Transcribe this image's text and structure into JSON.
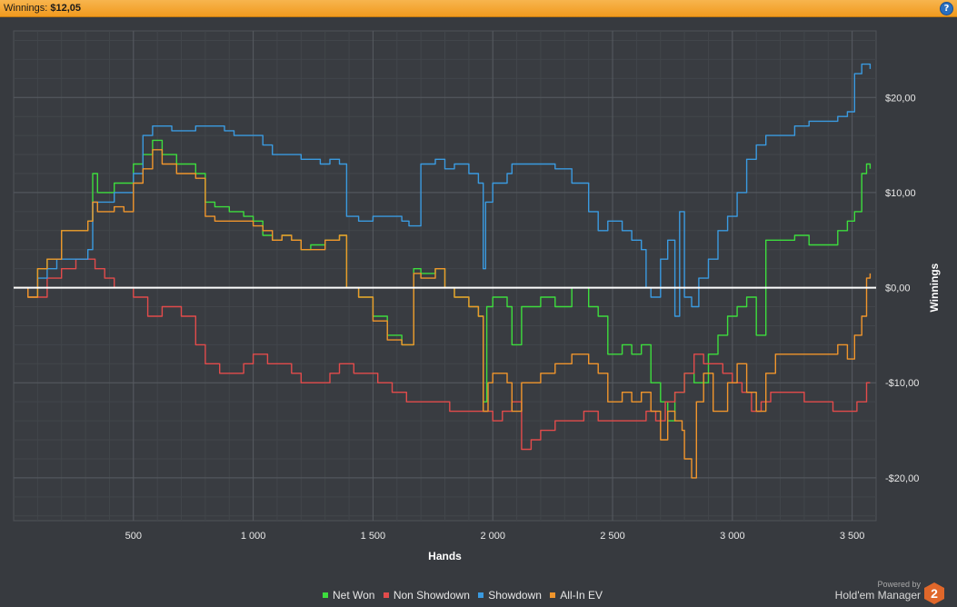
{
  "header": {
    "label": "Winnings:",
    "value": "$12,05",
    "help_icon": "?"
  },
  "chart_data": {
    "type": "line",
    "title": "",
    "xlabel": "Hands",
    "ylabel": "Winnings",
    "xlim": [
      0,
      3600
    ],
    "ylim": [
      -24.5,
      27
    ],
    "x_ticks": [
      500,
      1000,
      1500,
      2000,
      2500,
      3000,
      3500
    ],
    "x_tick_labels": [
      "500",
      "1 000",
      "1 500",
      "2 000",
      "2 500",
      "3 000",
      "3 500"
    ],
    "y_ticks": [
      20,
      10,
      0,
      -10,
      -20
    ],
    "y_tick_labels": [
      "$20,00",
      "$10,00",
      "$0,00",
      "-$10,00",
      "-$20,00"
    ],
    "grid": true,
    "zero_line": true,
    "legend_position": "bottom",
    "series": [
      {
        "name": "Net Won",
        "color": "#3ddc3d",
        "x": [
          0,
          60,
          100,
          140,
          200,
          230,
          280,
          310,
          330,
          350,
          380,
          420,
          460,
          500,
          540,
          580,
          620,
          680,
          760,
          800,
          840,
          900,
          960,
          1000,
          1040,
          1080,
          1120,
          1160,
          1200,
          1240,
          1300,
          1360,
          1390,
          1440,
          1500,
          1560,
          1620,
          1670,
          1700,
          1760,
          1800,
          1840,
          1900,
          1940,
          1960,
          1975,
          2000,
          2060,
          2080,
          2120,
          2200,
          2260,
          2330,
          2400,
          2440,
          2480,
          2540,
          2580,
          2620,
          2660,
          2700,
          2730,
          2760,
          2800,
          2840,
          2900,
          2940,
          2980,
          3020,
          3060,
          3100,
          3140,
          3180,
          3260,
          3320,
          3380,
          3440,
          3480,
          3510,
          3540,
          3560,
          3575
        ],
        "y": [
          0,
          -1,
          2,
          3,
          6,
          6,
          6,
          7,
          12,
          10,
          10,
          11,
          11,
          13,
          14,
          15.5,
          14,
          13,
          12,
          9,
          8.5,
          8,
          7.5,
          7,
          5.5,
          5,
          5.5,
          5,
          4,
          4.5,
          5,
          5.5,
          0,
          -1,
          -3,
          -5,
          -6,
          2,
          1.5,
          2,
          0,
          -1,
          -2,
          -3,
          -12,
          -2,
          -1,
          -2,
          -6,
          -2,
          -1,
          -2,
          0,
          -2,
          -3,
          -7,
          -6,
          -7,
          -6,
          -10,
          -12,
          -14,
          -11,
          -9,
          -10,
          -7,
          -5,
          -3,
          -2,
          -1,
          -5,
          5,
          5,
          5.5,
          4.5,
          4.5,
          6,
          7,
          8,
          12,
          13,
          12.5
        ]
      },
      {
        "name": "Non Showdown",
        "color": "#e24b4b",
        "x": [
          0,
          60,
          100,
          140,
          200,
          260,
          310,
          340,
          380,
          420,
          500,
          560,
          620,
          700,
          760,
          800,
          860,
          920,
          960,
          1000,
          1060,
          1120,
          1160,
          1200,
          1260,
          1320,
          1360,
          1420,
          1460,
          1520,
          1580,
          1640,
          1700,
          1760,
          1820,
          1880,
          1940,
          2000,
          2040,
          2080,
          2120,
          2160,
          2200,
          2260,
          2320,
          2380,
          2440,
          2480,
          2540,
          2600,
          2640,
          2680,
          2720,
          2760,
          2800,
          2840,
          2880,
          2920,
          2960,
          3000,
          3040,
          3080,
          3120,
          3160,
          3220,
          3260,
          3300,
          3360,
          3420,
          3460,
          3520,
          3560,
          3575
        ],
        "y": [
          0,
          -1,
          -1,
          1,
          2,
          3,
          3,
          2,
          1,
          0,
          -1,
          -3,
          -2,
          -3,
          -6,
          -8,
          -9,
          -9,
          -8,
          -7,
          -8,
          -8,
          -9,
          -10,
          -10,
          -9,
          -8,
          -9,
          -9,
          -10,
          -11,
          -12,
          -12,
          -12,
          -13,
          -13,
          -13,
          -14,
          -13,
          -12,
          -17,
          -16,
          -15,
          -14,
          -14,
          -13,
          -14,
          -14,
          -14,
          -14,
          -13,
          -14,
          -12,
          -11,
          -9,
          -7,
          -8,
          -8,
          -9,
          -10,
          -11,
          -13,
          -12,
          -11,
          -11,
          -11,
          -12,
          -12,
          -13,
          -13,
          -12,
          -10,
          -10
        ]
      },
      {
        "name": "Showdown",
        "color": "#3a9ae0",
        "x": [
          0,
          60,
          100,
          140,
          180,
          230,
          280,
          310,
          330,
          350,
          380,
          420,
          460,
          500,
          540,
          580,
          620,
          660,
          700,
          760,
          800,
          840,
          880,
          920,
          960,
          1000,
          1040,
          1080,
          1120,
          1160,
          1200,
          1240,
          1280,
          1320,
          1360,
          1390,
          1440,
          1500,
          1560,
          1620,
          1650,
          1700,
          1760,
          1800,
          1840,
          1900,
          1940,
          1960,
          1970,
          2000,
          2060,
          2080,
          2120,
          2200,
          2260,
          2330,
          2400,
          2440,
          2480,
          2540,
          2580,
          2620,
          2640,
          2660,
          2700,
          2730,
          2760,
          2780,
          2800,
          2830,
          2860,
          2900,
          2940,
          2980,
          3020,
          3060,
          3100,
          3140,
          3180,
          3260,
          3320,
          3380,
          3440,
          3480,
          3510,
          3540,
          3560,
          3575
        ],
        "y": [
          0,
          0,
          1,
          2,
          3,
          3,
          3,
          4,
          9,
          9,
          9,
          10,
          10,
          12,
          16,
          17,
          17,
          16.5,
          16.5,
          17,
          17,
          17,
          16.5,
          16,
          16,
          16,
          15,
          14,
          14,
          14,
          13.5,
          13.5,
          13,
          13.5,
          13,
          7.5,
          7,
          7.5,
          7.5,
          7,
          6.5,
          13,
          13.5,
          12.5,
          13,
          12,
          11,
          2,
          9,
          11,
          12,
          13,
          13,
          13,
          12.5,
          11,
          8,
          6,
          7,
          6,
          5,
          4,
          0,
          -1,
          3,
          5,
          -3,
          8,
          -1,
          -2,
          1,
          3,
          6,
          7.5,
          10,
          13.5,
          15,
          16,
          16,
          17,
          17.5,
          17.5,
          18,
          18.5,
          22.5,
          23.5,
          23.5,
          23
        ]
      },
      {
        "name": "All-In EV",
        "color": "#f0952c",
        "x": [
          0,
          60,
          100,
          140,
          200,
          230,
          280,
          310,
          330,
          350,
          380,
          420,
          460,
          500,
          540,
          580,
          620,
          680,
          760,
          800,
          840,
          900,
          960,
          1000,
          1040,
          1080,
          1120,
          1160,
          1200,
          1240,
          1300,
          1360,
          1390,
          1440,
          1500,
          1560,
          1620,
          1670,
          1700,
          1760,
          1800,
          1840,
          1900,
          1940,
          1960,
          1980,
          2000,
          2060,
          2080,
          2120,
          2200,
          2260,
          2330,
          2400,
          2440,
          2480,
          2540,
          2580,
          2620,
          2660,
          2700,
          2730,
          2760,
          2790,
          2800,
          2830,
          2850,
          2880,
          2920,
          2980,
          3020,
          3060,
          3100,
          3140,
          3180,
          3260,
          3320,
          3380,
          3440,
          3480,
          3510,
          3540,
          3560,
          3575
        ],
        "y": [
          0,
          -1,
          2,
          3,
          6,
          6,
          6,
          7,
          9,
          8,
          8,
          8.5,
          8,
          11,
          12.5,
          14.5,
          13,
          12,
          11.5,
          7.5,
          7,
          7,
          7,
          6.5,
          6,
          5,
          5.5,
          5,
          4,
          4,
          5,
          5.5,
          0,
          -1,
          -3.5,
          -5.5,
          -6,
          1.5,
          1,
          2,
          0,
          -1,
          -2,
          -3,
          -13,
          -10,
          -9,
          -10,
          -13,
          -10,
          -9,
          -8,
          -7,
          -8,
          -9,
          -12,
          -11,
          -12,
          -11,
          -13,
          -16,
          -13,
          -14,
          -15,
          -18,
          -20,
          -12,
          -9,
          -13,
          -10,
          -8,
          -11,
          -13,
          -9,
          -7,
          -7,
          -7,
          -7,
          -6,
          -7.5,
          -5,
          -3,
          1,
          1.5
        ]
      }
    ]
  },
  "legend": {
    "items": [
      "Net Won",
      "Non Showdown",
      "Showdown",
      "All-In EV"
    ]
  },
  "branding": {
    "powered_by": "Powered by",
    "name": "Hold'em Manager",
    "logo_text": "2"
  }
}
